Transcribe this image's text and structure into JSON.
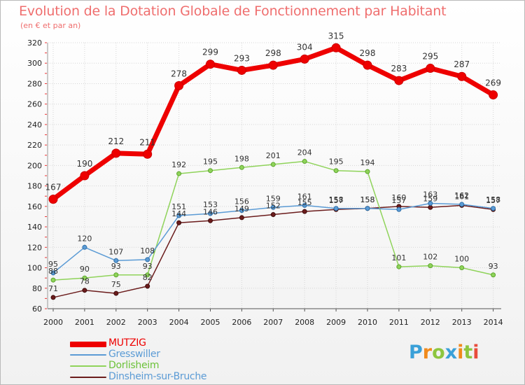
{
  "chart_data": {
    "type": "line",
    "title": "Evolution de la Dotation Globale de Fonctionnement par Habitant",
    "subtitle": "(en € et par an)",
    "xlabel": "",
    "ylabel": "",
    "ylim": [
      60,
      320
    ],
    "yticks": [
      60,
      80,
      100,
      120,
      140,
      160,
      180,
      200,
      220,
      240,
      260,
      280,
      300,
      320
    ],
    "categories": [
      "2000",
      "2001",
      "2002",
      "2003",
      "2004",
      "2005",
      "2006",
      "2007",
      "2008",
      "2009",
      "2010",
      "2011",
      "2012",
      "2013",
      "2014"
    ],
    "legend_position": "bottom-left",
    "series": [
      {
        "name": "MUTZIG",
        "color": "#ee0000",
        "values": [
          167,
          190,
          212,
          211,
          278,
          299,
          293,
          298,
          304,
          315,
          298,
          283,
          295,
          287,
          269
        ]
      },
      {
        "name": "Gresswiller",
        "color": "#5b9bd5",
        "values": [
          95,
          120,
          107,
          108,
          151,
          153,
          156,
          159,
          161,
          158,
          158,
          157,
          163,
          162,
          158
        ]
      },
      {
        "name": "Dorlisheim",
        "color": "#8fd35a",
        "values": [
          88,
          90,
          93,
          93,
          192,
          195,
          198,
          201,
          204,
          195,
          194,
          101,
          102,
          100,
          93
        ]
      },
      {
        "name": "Dinsheim-sur-Bruche",
        "color": "#6b1c1c",
        "values": [
          71,
          78,
          75,
          82,
          144,
          146,
          149,
          152,
          155,
          157,
          158,
          160,
          159,
          161,
          157
        ]
      }
    ]
  },
  "legend": {
    "items": [
      "MUTZIG",
      "Gresswiller",
      "Dorlisheim",
      "Dinsheim-sur-Bruche"
    ]
  },
  "logo": {
    "letters": [
      "P",
      "r",
      "o",
      "x",
      "i",
      "t",
      "i"
    ],
    "colors": [
      "#3aa0d8",
      "#f08a1c",
      "#8dc63f",
      "#3aa0d8",
      "#f08a1c",
      "#8dc63f",
      "#e84b3c"
    ]
  }
}
